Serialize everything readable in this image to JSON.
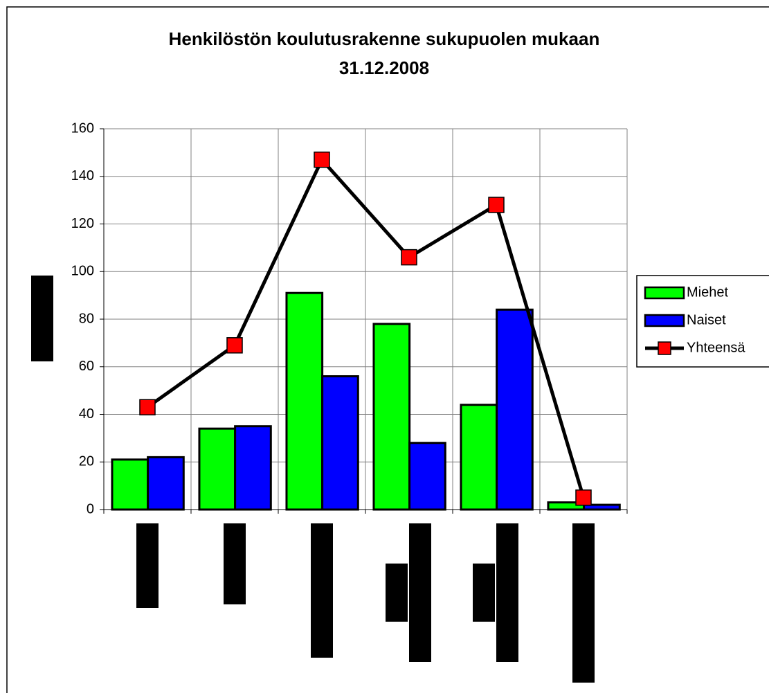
{
  "chart_data": {
    "type": "bar_line",
    "title": "Henkilöstön koulutusrakenne sukupuolen mukaan",
    "subtitle": "31.12.2008",
    "categories": [
      null,
      null,
      null,
      null,
      null,
      null
    ],
    "series": [
      {
        "name": "Miehet",
        "type": "bar",
        "color": "#00ff00",
        "values": [
          21,
          34,
          91,
          78,
          44,
          3
        ]
      },
      {
        "name": "Naiset",
        "type": "bar",
        "color": "#0000ff",
        "values": [
          22,
          35,
          56,
          28,
          84,
          2
        ]
      },
      {
        "name": "Yhteensä",
        "type": "line",
        "color": "#000000",
        "marker_color": "#ff0000",
        "values": [
          43,
          69,
          147,
          106,
          128,
          5
        ]
      }
    ],
    "ylim": [
      0,
      160
    ],
    "yticks": [
      0,
      20,
      40,
      60,
      80,
      100,
      120,
      140,
      160
    ],
    "grid": true,
    "legend": "right"
  }
}
